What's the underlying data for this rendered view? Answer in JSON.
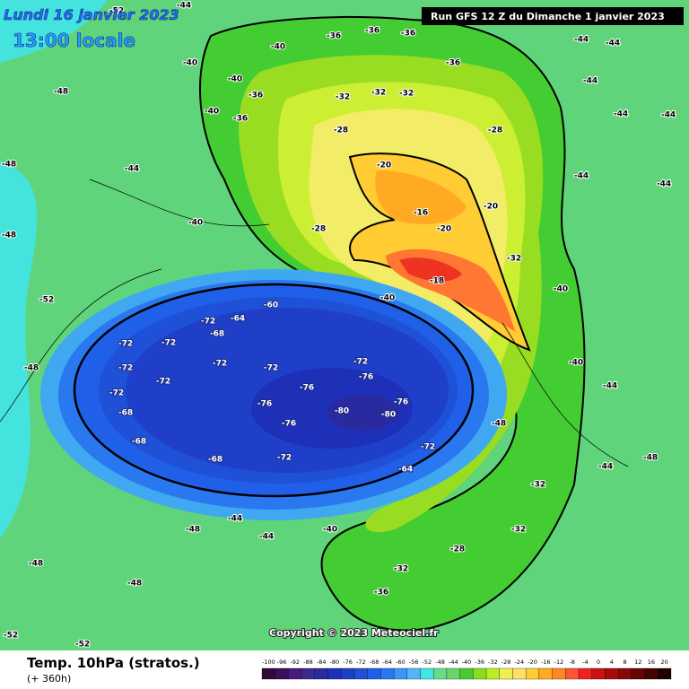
{
  "header": {
    "date": "Lundi 16 janvier 2023",
    "local_time": "13:00 locale",
    "run": "Run GFS 12 Z du Dimanche 1 janvier 2023"
  },
  "footer": {
    "title": "Temp. 10hPa (stratos.)",
    "lead": "(+ 360h)",
    "copyright": "Copyright © 2023 Meteociel.fr"
  },
  "legend": {
    "labels": [
      -100,
      -96,
      -92,
      -88,
      -84,
      -80,
      -76,
      -72,
      -68,
      -64,
      -60,
      -56,
      -52,
      -48,
      -44,
      -40,
      -36,
      -32,
      -28,
      -24,
      -20,
      -16,
      -12,
      -8,
      -4,
      0,
      4,
      8,
      12,
      16,
      20
    ],
    "colors": [
      "#2d0a3a",
      "#3c0f5a",
      "#4a1a7a",
      "#3b2a8f",
      "#2a2aa0",
      "#1e2fb8",
      "#1f3fc9",
      "#1f50d8",
      "#2060e8",
      "#2a78f0",
      "#3c96f5",
      "#55b4f8",
      "#3ee6e6",
      "#66dd88",
      "#6bd46b",
      "#44cc33",
      "#88dd22",
      "#bbee22",
      "#eeee55",
      "#ffe066",
      "#ffcc33",
      "#ffaa22",
      "#ff8822",
      "#ff5533",
      "#ee2222",
      "#cc1111",
      "#aa0a0a",
      "#880808",
      "#660505",
      "#440303",
      "#220000"
    ]
  },
  "contour_labels": [
    -44,
    -52,
    -40,
    -36,
    -36,
    -36,
    -36,
    -44,
    -44,
    -40,
    -40,
    -36,
    -32,
    -32,
    -32,
    -28,
    -28,
    -36,
    -40,
    -48,
    -44,
    -48,
    -44,
    -44,
    -44,
    -44,
    -44,
    -20,
    -16,
    -20,
    -20,
    -28,
    -32,
    -18,
    -40,
    -40,
    -40,
    -48,
    -44,
    -44,
    -48,
    -32,
    -32,
    -28,
    -32,
    -36,
    -40,
    -44,
    -44,
    -48,
    -48,
    -48,
    -52,
    -52,
    -48,
    -48,
    -52,
    -40,
    -64,
    -60,
    -72,
    -68,
    -72,
    -72,
    -72,
    -72,
    -72,
    -72,
    -68,
    -72,
    -76,
    -76,
    -80,
    -80,
    -76,
    -76,
    -72,
    -76,
    -72,
    -68,
    -68,
    -64,
    -72
  ]
}
